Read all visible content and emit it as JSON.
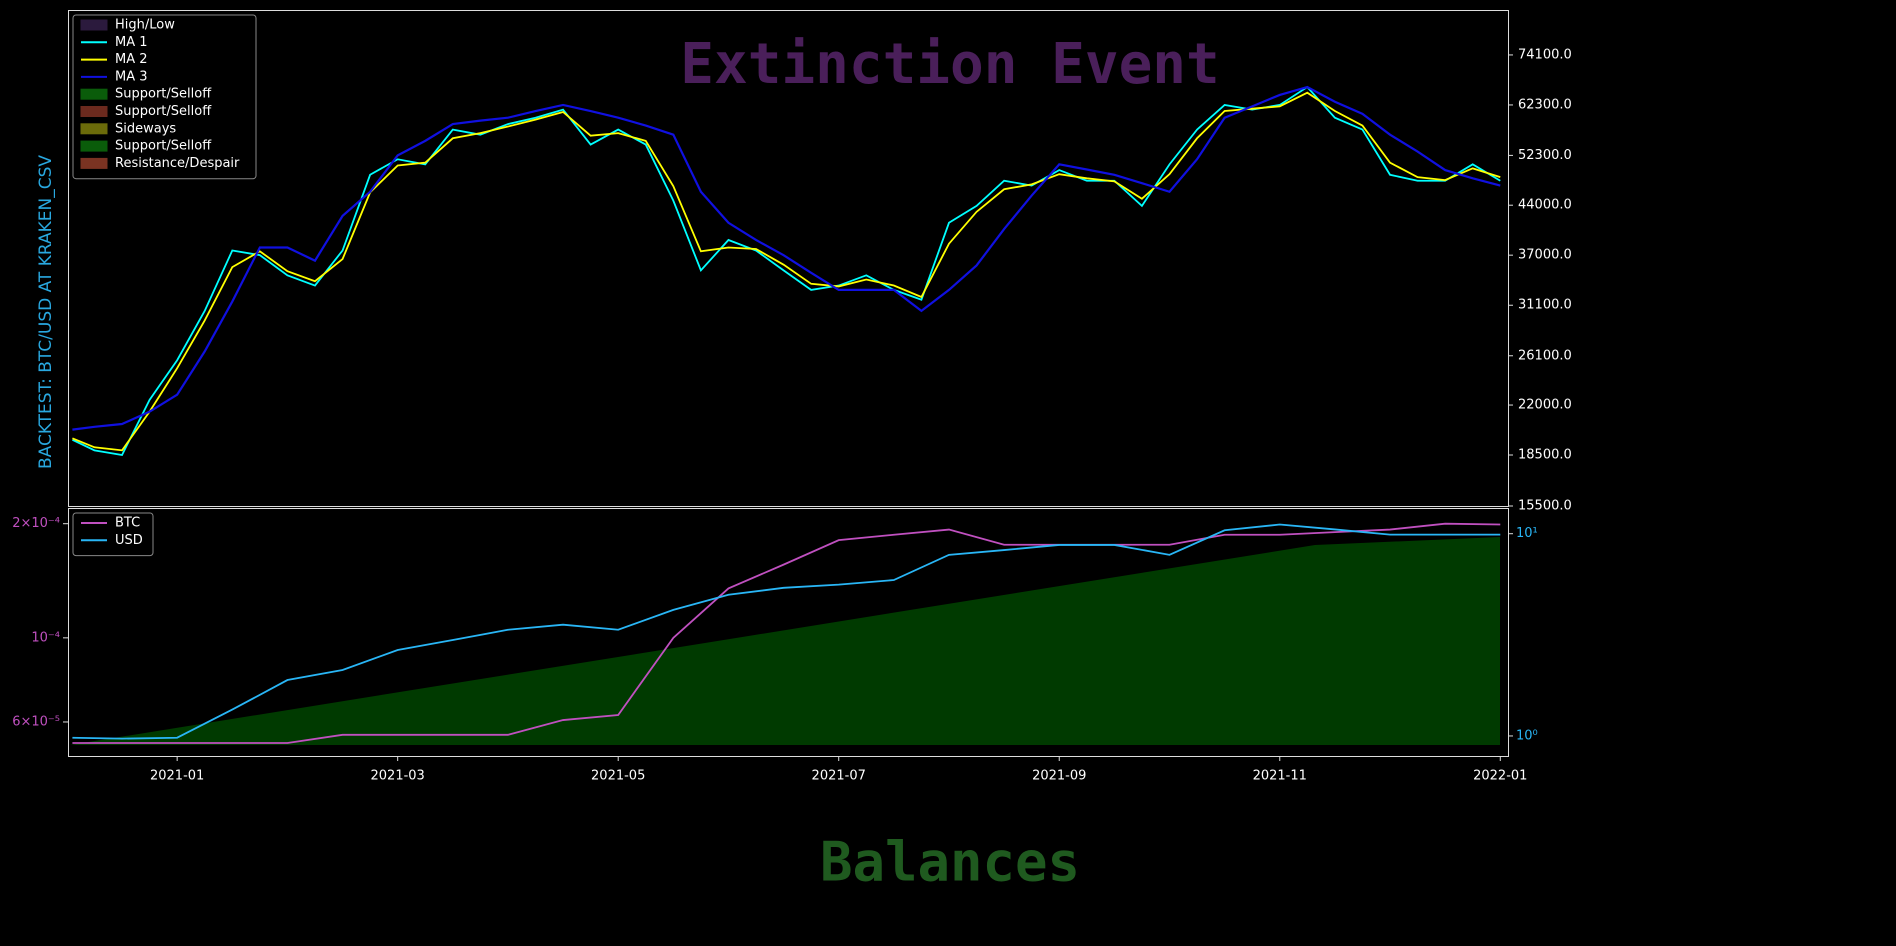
{
  "chart_data": [
    {
      "type": "line",
      "title": "Extinction Event",
      "y_label": "BACKTEST:  BTC/USD AT KRAKEN_CSV",
      "x": [
        -0.95,
        -0.75,
        -0.5,
        -0.25,
        0,
        0.25,
        0.5,
        0.75,
        1,
        1.25,
        1.5,
        1.75,
        2,
        2.25,
        2.5,
        2.75,
        3,
        3.25,
        3.5,
        3.75,
        4,
        4.25,
        4.5,
        4.75,
        5,
        5.25,
        5.5,
        5.75,
        6,
        6.25,
        6.5,
        6.75,
        7,
        7.25,
        7.5,
        7.75,
        8,
        8.25,
        8.5,
        8.75,
        9,
        9.25,
        9.5,
        9.75,
        10,
        10.25,
        10.5,
        10.75,
        11,
        11.25,
        11.5,
        11.75,
        12
      ],
      "xlim": [
        -0.99,
        12.07
      ],
      "ylim": [
        15500,
        86600
      ],
      "log_y": true,
      "yticks": [
        {
          "value": 15500,
          "label": "15500.0"
        },
        {
          "value": 18500,
          "label": "18500.0"
        },
        {
          "value": 22000,
          "label": "22000.0"
        },
        {
          "value": 26100,
          "label": "26100.0"
        },
        {
          "value": 31100,
          "label": "31100.0"
        },
        {
          "value": 37000,
          "label": "37000.0"
        },
        {
          "value": 44000,
          "label": "44000.0"
        },
        {
          "value": 52300,
          "label": "52300.0"
        },
        {
          "value": 62300,
          "label": "62300.0"
        },
        {
          "value": 74100,
          "label": "74100.0"
        }
      ],
      "legend": "upper left",
      "bands": [
        {
          "name": "High/Low",
          "color": "#2b1a3d"
        },
        {
          "name": "Support/Selloff",
          "color": "#0a5c0a"
        },
        {
          "name": "Support/Selloff",
          "color": "#6b2a1e"
        },
        {
          "name": "Sideways",
          "color": "#6b6b0a"
        },
        {
          "name": "Support/Selloff",
          "color": "#0a5c0a"
        },
        {
          "name": "Resistance/Despair",
          "color": "#7a3322"
        }
      ],
      "series": [
        {
          "name": "MA 1",
          "color": "#00ffff",
          "values": [
            19500,
            18800,
            18500,
            22400,
            25700,
            30500,
            37600,
            37000,
            34500,
            33300,
            37600,
            48900,
            51600,
            50700,
            57200,
            56200,
            58300,
            59600,
            61300,
            54300,
            57200,
            54300,
            44700,
            35100,
            39000,
            37600,
            35100,
            32800,
            33300,
            34500,
            32800,
            31700,
            41400,
            43900,
            47900,
            47100,
            49700,
            47900,
            47900,
            43900,
            50700,
            57200,
            62300,
            61300,
            62300,
            66300,
            59600,
            57200,
            48900,
            47900,
            47900,
            50700,
            47900
          ]
        },
        {
          "name": "MA 2",
          "color": "#ffff00",
          "values": [
            19600,
            19000,
            18800,
            21500,
            25000,
            29500,
            35500,
            37500,
            35000,
            33800,
            36500,
            46000,
            50500,
            51000,
            55500,
            56500,
            57800,
            59200,
            60800,
            56000,
            56500,
            55000,
            47000,
            37500,
            38000,
            37800,
            35800,
            33500,
            33200,
            34000,
            33300,
            32000,
            38500,
            43000,
            46500,
            47300,
            49000,
            48300,
            47800,
            45000,
            49000,
            55500,
            61000,
            61500,
            62000,
            65000,
            61000,
            58000,
            51000,
            48500,
            48000,
            50000,
            48500
          ]
        },
        {
          "name": "MA 3",
          "color": "#1010e0",
          "values": [
            20200,
            20400,
            20600,
            21500,
            22800,
            26500,
            31500,
            38000,
            38000,
            36300,
            42400,
            46100,
            52300,
            55000,
            58300,
            59000,
            59600,
            61000,
            62300,
            61000,
            59600,
            58000,
            56200,
            46100,
            41400,
            39000,
            37000,
            34800,
            32800,
            32800,
            32800,
            30500,
            32800,
            35700,
            40500,
            45500,
            50700,
            49800,
            48900,
            47500,
            46100,
            51600,
            59600,
            62000,
            64500,
            66300,
            63000,
            60400,
            56200,
            53000,
            49700,
            48300,
            47100
          ]
        }
      ]
    },
    {
      "type": "line",
      "title": "Balances",
      "x": [
        -0.95,
        -0.5,
        0,
        0.5,
        1,
        1.5,
        2,
        2.5,
        3,
        3.5,
        4,
        4.5,
        5,
        5.5,
        6,
        6.5,
        7,
        7.5,
        8,
        8.5,
        9,
        9.5,
        10,
        10.5,
        11,
        11.5,
        12
      ],
      "xlim": [
        -0.99,
        12.07
      ],
      "xticks": [
        {
          "value": 0,
          "label": "2021-01"
        },
        {
          "value": 2,
          "label": "2021-03"
        },
        {
          "value": 4,
          "label": "2021-05"
        },
        {
          "value": 6,
          "label": "2021-07"
        },
        {
          "value": 8,
          "label": "2021-09"
        },
        {
          "value": 10,
          "label": "2021-11"
        },
        {
          "value": 12,
          "label": "2022-01"
        }
      ],
      "ylim": [
        4.88e-05,
        0.00022
      ],
      "log_y": true,
      "yticks": [
        {
          "value": 6e-05,
          "label": "6×10⁻⁵"
        },
        {
          "value": 0.0001,
          "label": "10⁻⁴"
        },
        {
          "value": 0.0002,
          "label": "2×10⁻⁴"
        }
      ],
      "y2lim": [
        0.796,
        13.4
      ],
      "y2ticks": [
        {
          "value": 1,
          "label": "10⁰"
        },
        {
          "value": 10,
          "label": "10¹"
        }
      ],
      "legend": "upper left",
      "series": [
        {
          "name": "BTC",
          "color": "#c050c0",
          "values": [
            5.28e-05,
            5.28e-05,
            5.28e-05,
            5.28e-05,
            5.28e-05,
            5.55e-05,
            5.55e-05,
            5.55e-05,
            5.55e-05,
            6.07e-05,
            6.26e-05,
            0.0001,
            0.000135,
            0.000156,
            0.000181,
            0.000187,
            0.000193,
            0.000176,
            0.000176,
            0.000176,
            0.000176,
            0.000187,
            0.000187,
            0.00019,
            0.000193,
            0.0002,
            0.000199
          ]
        },
        {
          "name": "USD",
          "color": "#29b6f6",
          "axis": "y2",
          "values": [
            0.98,
            0.97,
            0.98,
            1.35,
            1.89,
            2.12,
            2.66,
            2.98,
            3.35,
            3.55,
            3.35,
            4.2,
            4.99,
            5.4,
            5.6,
            5.9,
            7.86,
            8.3,
            8.8,
            8.8,
            7.86,
            10.4,
            11.1,
            10.5,
            9.9,
            9.9,
            9.9
          ]
        }
      ]
    }
  ]
}
